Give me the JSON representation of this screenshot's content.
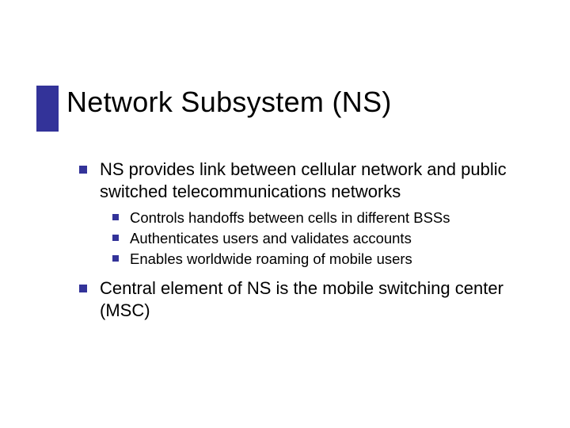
{
  "slide": {
    "title": "Network Subsystem (NS)",
    "accent_color": "#333399",
    "background_color": "#ffffff",
    "title_fontsize": 36,
    "body_fontsize_l1": 22,
    "body_fontsize_l2": 18.5,
    "bullets": [
      {
        "text": "NS provides link between cellular network and public switched telecommunications networks",
        "children": [
          {
            "text": "Controls handoffs between cells in different BSSs"
          },
          {
            "text": "Authenticates users and validates accounts"
          },
          {
            "text": "Enables worldwide roaming of mobile users"
          }
        ]
      },
      {
        "text": "Central element of NS is the mobile switching center (MSC)",
        "children": []
      }
    ]
  }
}
